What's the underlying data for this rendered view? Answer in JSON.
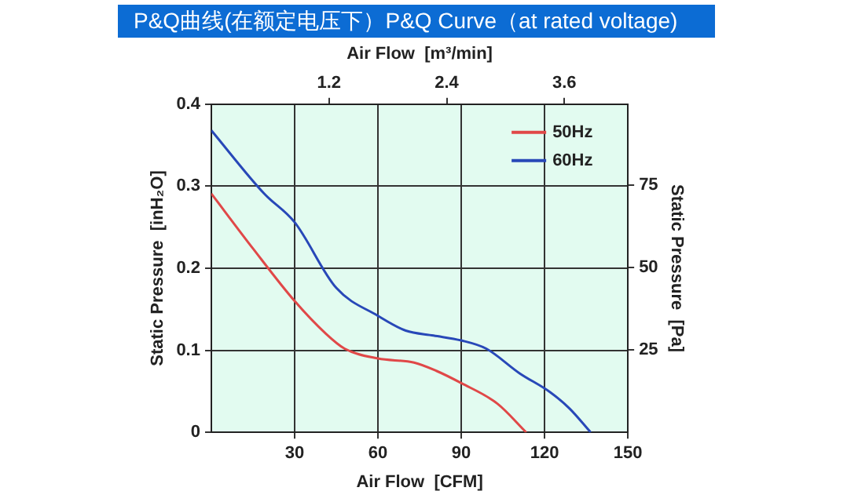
{
  "chart_data": {
    "type": "line",
    "title": "P&Q曲线(在额定电压下）P&Q Curve（at rated voltage)",
    "xlabel": "Air Flow  [CFM]",
    "ylabel": "Static Pressure  [inH₂O]",
    "y2label": "Static Pressure  [Pa]",
    "x2label": "Air Flow  [m³/min]",
    "xlim": [
      0,
      150
    ],
    "xticks": [
      30,
      60,
      90,
      120,
      150
    ],
    "ylim": [
      0,
      0.4
    ],
    "yticks": [
      0,
      0.1,
      0.2,
      0.3,
      0.4
    ],
    "x2lim": [
      0,
      4.248
    ],
    "x2ticks": [
      1.2,
      2.4,
      3.6
    ],
    "y2lim": [
      0,
      99.6
    ],
    "y2ticks": [
      25,
      50,
      75
    ],
    "grid": true,
    "legend": "top right",
    "marker": "none",
    "line_style": "solid",
    "series": [
      {
        "name": "50Hz",
        "color": "#e04848",
        "x": [
          0,
          15,
          30,
          41,
          48,
          60,
          73,
          81,
          90,
          103,
          113.4
        ],
        "values": [
          0.291,
          0.224,
          0.16,
          0.121,
          0.102,
          0.09,
          0.085,
          0.075,
          0.06,
          0.035,
          0
        ]
      },
      {
        "name": "60Hz",
        "color": "#2848b8",
        "x": [
          0,
          19,
          30,
          45,
          60,
          70,
          80,
          90,
          99,
          111,
          122,
          129,
          136.6
        ],
        "values": [
          0.368,
          0.291,
          0.256,
          0.176,
          0.142,
          0.124,
          0.118,
          0.112,
          0.102,
          0.072,
          0.049,
          0.029,
          0
        ]
      }
    ]
  }
}
